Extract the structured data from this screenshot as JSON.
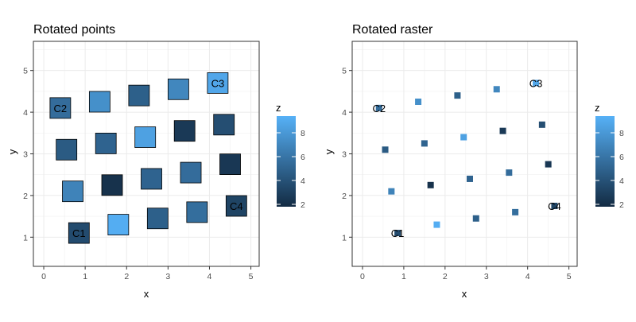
{
  "chart_data": [
    {
      "type": "scatter",
      "title": "Rotated points",
      "xlabel": "x",
      "ylabel": "y",
      "xlim": [
        -0.25,
        5.2
      ],
      "ylim": [
        0.3,
        5.7
      ],
      "xticks": [
        0,
        1,
        2,
        3,
        4,
        5
      ],
      "yticks": [
        1,
        2,
        3,
        4,
        5
      ],
      "grid": true,
      "marker": "large rotated square with black outline",
      "colorbar": {
        "title": "z",
        "ticks": [
          2,
          4,
          6,
          8
        ],
        "range": [
          1.8,
          9.4
        ],
        "low_color": "#132B43",
        "high_color": "#56B1F7",
        "position": "right"
      },
      "points": [
        {
          "x": 0.4,
          "y": 4.1,
          "z": 5.5,
          "label": "C2"
        },
        {
          "x": 1.35,
          "y": 4.25,
          "z": 7.5,
          "label": ""
        },
        {
          "x": 2.3,
          "y": 4.4,
          "z": 4.8,
          "label": ""
        },
        {
          "x": 3.25,
          "y": 4.55,
          "z": 7.0,
          "label": ""
        },
        {
          "x": 4.2,
          "y": 4.7,
          "z": 8.8,
          "label": "C3"
        },
        {
          "x": 0.55,
          "y": 3.1,
          "z": 4.5,
          "label": ""
        },
        {
          "x": 1.5,
          "y": 3.25,
          "z": 5.0,
          "label": ""
        },
        {
          "x": 2.45,
          "y": 3.4,
          "z": 8.5,
          "label": ""
        },
        {
          "x": 3.4,
          "y": 3.55,
          "z": 2.6,
          "label": ""
        },
        {
          "x": 4.35,
          "y": 3.7,
          "z": 3.8,
          "label": ""
        },
        {
          "x": 0.7,
          "y": 2.1,
          "z": 6.8,
          "label": ""
        },
        {
          "x": 1.65,
          "y": 2.25,
          "z": 2.2,
          "label": ""
        },
        {
          "x": 2.6,
          "y": 2.4,
          "z": 5.0,
          "label": ""
        },
        {
          "x": 3.55,
          "y": 2.55,
          "z": 5.5,
          "label": ""
        },
        {
          "x": 4.5,
          "y": 2.75,
          "z": 2.5,
          "label": ""
        },
        {
          "x": 0.85,
          "y": 1.1,
          "z": 3.6,
          "label": "C1"
        },
        {
          "x": 1.8,
          "y": 1.3,
          "z": 9.2,
          "label": ""
        },
        {
          "x": 2.75,
          "y": 1.45,
          "z": 4.8,
          "label": ""
        },
        {
          "x": 3.7,
          "y": 1.6,
          "z": 5.6,
          "label": ""
        },
        {
          "x": 4.65,
          "y": 1.75,
          "z": 3.2,
          "label": "C4"
        }
      ]
    },
    {
      "type": "scatter",
      "title": "Rotated raster",
      "xlabel": "x",
      "ylabel": "y",
      "xlim": [
        -0.25,
        5.2
      ],
      "ylim": [
        0.3,
        5.7
      ],
      "xticks": [
        0,
        1,
        2,
        3,
        4,
        5
      ],
      "yticks": [
        1,
        2,
        3,
        4,
        5
      ],
      "grid": true,
      "marker": "small filled square",
      "colorbar": {
        "title": "z",
        "ticks": [
          2,
          4,
          6,
          8
        ],
        "range": [
          1.8,
          9.4
        ],
        "low_color": "#132B43",
        "high_color": "#56B1F7",
        "position": "right"
      },
      "points": [
        {
          "x": 0.4,
          "y": 4.1,
          "z": 5.5,
          "label": "C2"
        },
        {
          "x": 1.35,
          "y": 4.25,
          "z": 7.5,
          "label": ""
        },
        {
          "x": 2.3,
          "y": 4.4,
          "z": 4.8,
          "label": ""
        },
        {
          "x": 3.25,
          "y": 4.55,
          "z": 7.0,
          "label": ""
        },
        {
          "x": 4.2,
          "y": 4.7,
          "z": 8.8,
          "label": "C3"
        },
        {
          "x": 0.55,
          "y": 3.1,
          "z": 4.5,
          "label": ""
        },
        {
          "x": 1.5,
          "y": 3.25,
          "z": 5.0,
          "label": ""
        },
        {
          "x": 2.45,
          "y": 3.4,
          "z": 8.5,
          "label": ""
        },
        {
          "x": 3.4,
          "y": 3.55,
          "z": 2.6,
          "label": ""
        },
        {
          "x": 4.35,
          "y": 3.7,
          "z": 3.8,
          "label": ""
        },
        {
          "x": 0.7,
          "y": 2.1,
          "z": 6.8,
          "label": ""
        },
        {
          "x": 1.65,
          "y": 2.25,
          "z": 2.2,
          "label": ""
        },
        {
          "x": 2.6,
          "y": 2.4,
          "z": 5.0,
          "label": ""
        },
        {
          "x": 3.55,
          "y": 2.55,
          "z": 5.5,
          "label": ""
        },
        {
          "x": 4.5,
          "y": 2.75,
          "z": 2.5,
          "label": ""
        },
        {
          "x": 0.85,
          "y": 1.1,
          "z": 3.6,
          "label": "C1"
        },
        {
          "x": 1.8,
          "y": 1.3,
          "z": 9.2,
          "label": ""
        },
        {
          "x": 2.75,
          "y": 1.45,
          "z": 4.8,
          "label": ""
        },
        {
          "x": 3.7,
          "y": 1.6,
          "z": 5.6,
          "label": ""
        },
        {
          "x": 4.65,
          "y": 1.75,
          "z": 3.2,
          "label": "C4"
        }
      ]
    }
  ]
}
